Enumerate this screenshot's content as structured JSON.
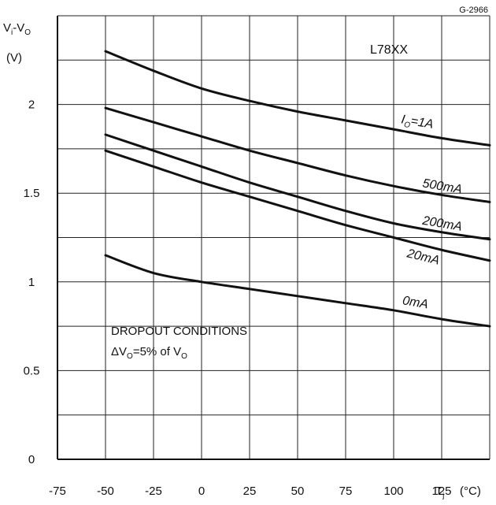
{
  "figure_code": "G-2966",
  "chart_data": {
    "type": "line",
    "title": "L78XX",
    "ylabel": {
      "base": "V",
      "sub": "i",
      "mid": "-V",
      "sub2": "O",
      "unit": "(V)"
    },
    "xlabel": {
      "base": "T",
      "sub": "j",
      "unit": "(°C)"
    },
    "xlim": [
      -75,
      150
    ],
    "ylim": [
      0,
      2.5
    ],
    "x_ticks": [
      -75,
      -50,
      -25,
      0,
      25,
      50,
      75,
      100,
      125
    ],
    "x_tick_labels": [
      "-75",
      "-50",
      "-25",
      "0",
      "25",
      "50",
      "75",
      "100",
      "125"
    ],
    "y_ticks": [
      0,
      0.5,
      1,
      1.5,
      2
    ],
    "y_tick_labels": [
      "0",
      "0.5",
      "1",
      "1.5",
      "2"
    ],
    "grid": true,
    "x": [
      -50,
      -25,
      0,
      25,
      50,
      75,
      100,
      125,
      150
    ],
    "series": [
      {
        "name": "IO=1A",
        "values": [
          2.3,
          2.19,
          2.09,
          2.02,
          1.96,
          1.91,
          1.86,
          1.81,
          1.77
        ]
      },
      {
        "name": "500mA",
        "values": [
          1.98,
          1.9,
          1.82,
          1.74,
          1.67,
          1.6,
          1.54,
          1.49,
          1.45
        ]
      },
      {
        "name": "200mA",
        "values": [
          1.83,
          1.74,
          1.65,
          1.56,
          1.48,
          1.4,
          1.33,
          1.28,
          1.24
        ]
      },
      {
        "name": "20mA",
        "values": [
          1.74,
          1.65,
          1.56,
          1.48,
          1.4,
          1.32,
          1.25,
          1.18,
          1.12
        ]
      },
      {
        "name": "0mA",
        "values": [
          1.15,
          1.05,
          1.0,
          0.96,
          0.92,
          0.88,
          0.84,
          0.79,
          0.75
        ]
      }
    ],
    "series_labels": [
      {
        "prefix": "I",
        "sub": "O",
        "rest": "=1A"
      },
      {
        "prefix": "500mA",
        "sub": "",
        "rest": ""
      },
      {
        "prefix": "200mA",
        "sub": "",
        "rest": ""
      },
      {
        "prefix": "20mA",
        "sub": "",
        "rest": ""
      },
      {
        "prefix": "0mA",
        "sub": "",
        "rest": ""
      }
    ],
    "annotation": {
      "line1": "DROPOUT  CONDITIONS",
      "line2_prefix": "ΔV",
      "line2_sub": "O",
      "line2_mid": "=5%  of  V",
      "line2_sub2": "O"
    }
  }
}
